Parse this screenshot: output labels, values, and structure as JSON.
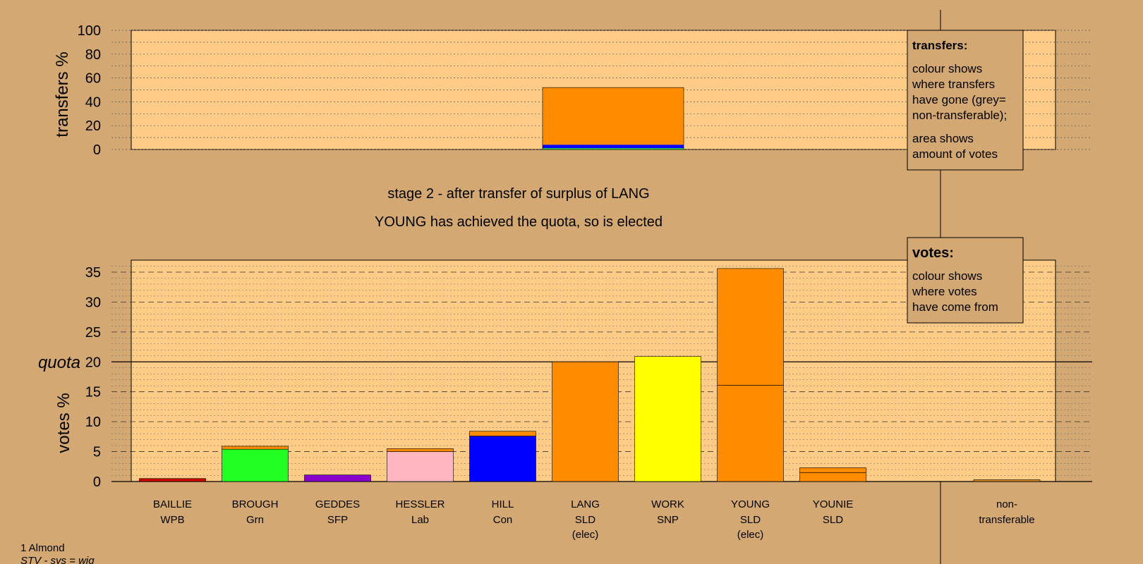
{
  "footer": {
    "line1": "1 Almond",
    "line2": "STV - sys = wig"
  },
  "transfers_legend": {
    "title": "transfers:",
    "lines": [
      "colour shows",
      "where transfers",
      "have gone (grey=",
      "non-transferable);"
    ],
    "lines2": [
      "area shows",
      "amount of votes"
    ]
  },
  "votes_legend": {
    "title": "votes:",
    "lines": [
      "colour shows",
      "where votes",
      "have come from"
    ]
  },
  "stage_title": "stage 2 - after transfer of surplus of LANG",
  "stage_subtitle": "YOUNG has achieved the quota, so is elected",
  "colors": {
    "background": "#d4a872",
    "plot_bg": "#ffcc88",
    "WPB": "#cc0000",
    "Grn": "#22ff22",
    "SFP": "#8800cc",
    "Lab": "#ffb6c1",
    "Con": "#0000ff",
    "SLD": "#ff8c00",
    "SNP": "#ffff00",
    "nontransferable": "#d48a2a"
  },
  "chart_data": [
    {
      "type": "bar",
      "ylabel": "transfers %",
      "ylim": [
        0,
        100
      ],
      "yticks": [
        0,
        20,
        40,
        60,
        80,
        100
      ],
      "bar_under": "LANG",
      "segments": [
        {
          "party": "Grn",
          "value": 1
        },
        {
          "party": "Con",
          "value": 3
        },
        {
          "party": "SLD",
          "value": 48
        }
      ]
    },
    {
      "type": "bar",
      "ylabel": "votes %",
      "ylim": [
        0,
        37
      ],
      "yticks": [
        0,
        5,
        10,
        15,
        20,
        25,
        30,
        35
      ],
      "quota": {
        "label": "quota",
        "value": 20
      },
      "categories": [
        {
          "name": "BAILLIE",
          "party": "WPB",
          "sub": "",
          "segments": [
            {
              "party": "WPB",
              "value": 0.5
            }
          ]
        },
        {
          "name": "BROUGH",
          "party": "Grn",
          "sub": "",
          "segments": [
            {
              "party": "Grn",
              "value": 5.4
            },
            {
              "party": "SLD",
              "value": 0.5
            }
          ]
        },
        {
          "name": "GEDDES",
          "party": "SFP",
          "sub": "",
          "segments": [
            {
              "party": "SFP",
              "value": 1.1
            }
          ]
        },
        {
          "name": "HESSLER",
          "party": "Lab",
          "sub": "",
          "segments": [
            {
              "party": "Lab",
              "value": 5.0
            },
            {
              "party": "SLD",
              "value": 0.5
            }
          ]
        },
        {
          "name": "HILL",
          "party": "Con",
          "sub": "",
          "segments": [
            {
              "party": "Con",
              "value": 7.6
            },
            {
              "party": "SLD",
              "value": 0.8
            }
          ]
        },
        {
          "name": "LANG",
          "party": "SLD",
          "sub": "(elec)",
          "segments": [
            {
              "party": "SLD",
              "value": 20.0
            }
          ]
        },
        {
          "name": "WORK",
          "party": "SNP",
          "sub": "",
          "segments": [
            {
              "party": "SNP",
              "value": 20.9
            }
          ]
        },
        {
          "name": "YOUNG",
          "party": "SLD",
          "sub": "(elec)",
          "segments": [
            {
              "party": "SLD",
              "value": 16.1
            },
            {
              "party": "SLD",
              "value": 19.5
            }
          ]
        },
        {
          "name": "YOUNIE",
          "party": "SLD",
          "sub": "",
          "segments": [
            {
              "party": "SLD",
              "value": 1.5
            },
            {
              "party": "SLD",
              "value": 0.8
            }
          ]
        }
      ],
      "nontransferable": {
        "label_line1": "non-",
        "label_line2": "transferable",
        "value": 0.3
      }
    }
  ]
}
